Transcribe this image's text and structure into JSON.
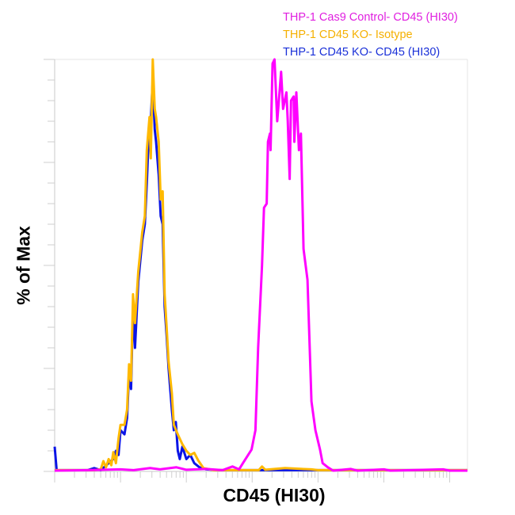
{
  "chart_data": {
    "type": "line",
    "title": "",
    "xlabel": "CD45 (HI30)",
    "ylabel": "% of Max",
    "x_scale": "log",
    "xlim": [
      0,
      6.27
    ],
    "ylim": [
      0,
      100
    ],
    "grid": false,
    "legend_placement": "top-right",
    "series": [
      {
        "name": "THP-1 CD45 KO- CD45 (HI30)",
        "color": "#0a14e6",
        "points": [
          [
            0,
            6
          ],
          [
            0.03,
            0.3
          ],
          [
            0.5,
            0.3
          ],
          [
            0.6,
            0.8
          ],
          [
            0.7,
            0.3
          ],
          [
            0.89,
            3
          ],
          [
            0.93,
            5
          ],
          [
            0.97,
            4
          ],
          [
            1.0,
            10
          ],
          [
            1.06,
            9
          ],
          [
            1.1,
            13
          ],
          [
            1.13,
            24
          ],
          [
            1.16,
            20
          ],
          [
            1.19,
            40
          ],
          [
            1.22,
            30
          ],
          [
            1.27,
            46
          ],
          [
            1.33,
            56
          ],
          [
            1.37,
            60
          ],
          [
            1.4,
            70
          ],
          [
            1.42,
            78
          ],
          [
            1.46,
            85
          ],
          [
            1.49,
            95
          ],
          [
            1.52,
            83
          ],
          [
            1.54,
            80
          ],
          [
            1.58,
            72
          ],
          [
            1.61,
            62
          ],
          [
            1.64,
            60
          ],
          [
            1.67,
            40
          ],
          [
            1.7,
            33
          ],
          [
            1.73,
            25
          ],
          [
            1.78,
            15
          ],
          [
            1.81,
            10
          ],
          [
            1.84,
            12
          ],
          [
            1.87,
            5
          ],
          [
            1.9,
            3
          ],
          [
            1.94,
            6
          ],
          [
            2.0,
            3
          ],
          [
            2.06,
            4
          ],
          [
            2.12,
            2
          ],
          [
            2.2,
            1
          ],
          [
            2.3,
            0.5
          ],
          [
            2.5,
            0.3
          ],
          [
            6.27,
            0.3
          ]
        ]
      },
      {
        "name": "THP-1 CD45 KO- Isotype",
        "color": "#ffb900",
        "points": [
          [
            0,
            0.3
          ],
          [
            0.6,
            0.3
          ],
          [
            0.7,
            0.5
          ],
          [
            0.74,
            2.5
          ],
          [
            0.78,
            1
          ],
          [
            0.82,
            3
          ],
          [
            0.86,
            1.5
          ],
          [
            0.89,
            4.7
          ],
          [
            0.93,
            2
          ],
          [
            0.97,
            8
          ],
          [
            1.0,
            11.3
          ],
          [
            1.06,
            11.3
          ],
          [
            1.1,
            15
          ],
          [
            1.13,
            26
          ],
          [
            1.16,
            22
          ],
          [
            1.19,
            43
          ],
          [
            1.22,
            36
          ],
          [
            1.27,
            48.5
          ],
          [
            1.33,
            58
          ],
          [
            1.37,
            62
          ],
          [
            1.4,
            78
          ],
          [
            1.42,
            82
          ],
          [
            1.44,
            86
          ],
          [
            1.46,
            76
          ],
          [
            1.49,
            100
          ],
          [
            1.52,
            88
          ],
          [
            1.54,
            86
          ],
          [
            1.58,
            80
          ],
          [
            1.61,
            66
          ],
          [
            1.64,
            68
          ],
          [
            1.67,
            43
          ],
          [
            1.7,
            35
          ],
          [
            1.73,
            26.6
          ],
          [
            1.78,
            19
          ],
          [
            1.81,
            11.3
          ],
          [
            1.87,
            9
          ],
          [
            1.94,
            6.6
          ],
          [
            2.0,
            5
          ],
          [
            2.06,
            4
          ],
          [
            2.12,
            4.5
          ],
          [
            2.18,
            2.7
          ],
          [
            2.26,
            0.8
          ],
          [
            2.42,
            0.3
          ],
          [
            3.1,
            0.3
          ],
          [
            3.15,
            1.2
          ],
          [
            3.2,
            0.4
          ],
          [
            3.5,
            0.8
          ],
          [
            3.9,
            0.5
          ],
          [
            4.0,
            0.3
          ],
          [
            6.27,
            0.3
          ]
        ]
      },
      {
        "name": "THP-1 Cas9 Control- CD45 (HI30)",
        "color": "#ff00ff",
        "points": [
          [
            0,
            0.2
          ],
          [
            0.5,
            0.3
          ],
          [
            1.0,
            0.5
          ],
          [
            1.2,
            0.3
          ],
          [
            1.45,
            0.8
          ],
          [
            1.6,
            0.5
          ],
          [
            1.85,
            1.0
          ],
          [
            2.0,
            0.4
          ],
          [
            2.3,
            0.6
          ],
          [
            2.55,
            0.3
          ],
          [
            2.7,
            1.2
          ],
          [
            2.8,
            0.5
          ],
          [
            2.86,
            2
          ],
          [
            2.99,
            5.3
          ],
          [
            3.05,
            10
          ],
          [
            3.09,
            30
          ],
          [
            3.15,
            50
          ],
          [
            3.18,
            64
          ],
          [
            3.22,
            65
          ],
          [
            3.24,
            80
          ],
          [
            3.27,
            82
          ],
          [
            3.28,
            78
          ],
          [
            3.31,
            99
          ],
          [
            3.34,
            100
          ],
          [
            3.38,
            85
          ],
          [
            3.44,
            97
          ],
          [
            3.47,
            88
          ],
          [
            3.52,
            92
          ],
          [
            3.54,
            85
          ],
          [
            3.57,
            71
          ],
          [
            3.59,
            90
          ],
          [
            3.63,
            91
          ],
          [
            3.64,
            80
          ],
          [
            3.67,
            92
          ],
          [
            3.71,
            78
          ],
          [
            3.74,
            82
          ],
          [
            3.78,
            54
          ],
          [
            3.84,
            46.5
          ],
          [
            3.9,
            17
          ],
          [
            3.96,
            10
          ],
          [
            4.03,
            5.3
          ],
          [
            4.07,
            2
          ],
          [
            4.15,
            1
          ],
          [
            4.23,
            0.2
          ],
          [
            4.5,
            0.6
          ],
          [
            4.6,
            0.2
          ],
          [
            5.0,
            0.5
          ],
          [
            5.1,
            0.2
          ],
          [
            5.9,
            0.5
          ],
          [
            6.0,
            0.2
          ],
          [
            6.27,
            0.2
          ]
        ]
      }
    ],
    "legend": [
      {
        "label": "THP-1 Cas9 Control- CD45 (HI30)",
        "color": "#e020e0"
      },
      {
        "label": "THP-1 CD45 KO- Isotype",
        "color": "#f5b000"
      },
      {
        "label": "THP-1 CD45 KO- CD45 (HI30)",
        "color": "#1a30d8"
      }
    ]
  }
}
